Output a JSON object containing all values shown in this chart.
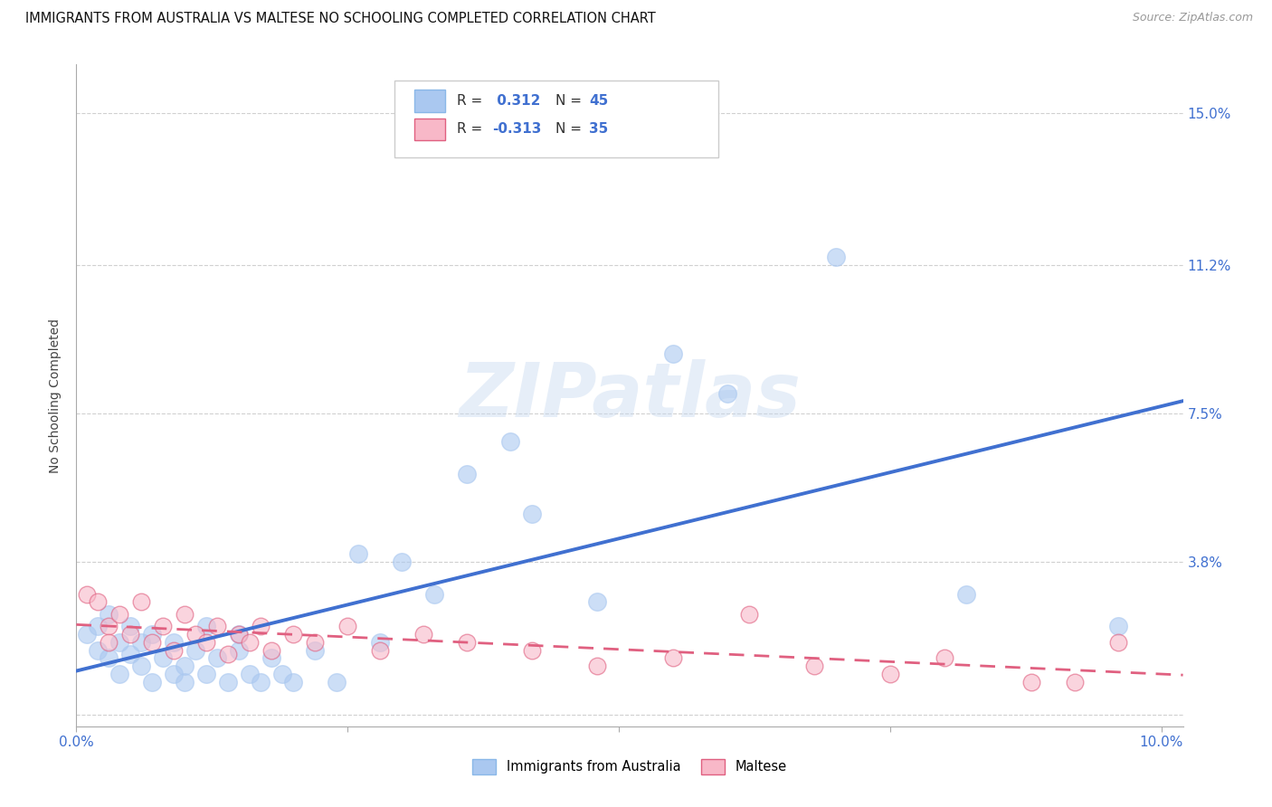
{
  "title": "IMMIGRANTS FROM AUSTRALIA VS MALTESE NO SCHOOLING COMPLETED CORRELATION CHART",
  "source": "Source: ZipAtlas.com",
  "ylabel": "No Schooling Completed",
  "xlim": [
    0.0,
    0.102
  ],
  "ylim": [
    -0.003,
    0.162
  ],
  "ytick_vals": [
    0.0,
    0.038,
    0.075,
    0.112,
    0.15
  ],
  "ytick_labels": [
    "",
    "3.8%",
    "7.5%",
    "11.2%",
    "15.0%"
  ],
  "xtick_vals": [
    0.0,
    0.025,
    0.05,
    0.075,
    0.1
  ],
  "xtick_labels": [
    "0.0%",
    "",
    "",
    "",
    "10.0%"
  ],
  "grid_color": "#d0d0d0",
  "background_color": "#ffffff",
  "blue_color": "#aac8f0",
  "blue_line_color": "#4070d0",
  "pink_color": "#f8b8c8",
  "pink_line_color": "#e06080",
  "legend_label1": "Immigrants from Australia",
  "legend_label2": "Maltese",
  "watermark_text": "ZIPatlas",
  "blue_x": [
    0.001,
    0.002,
    0.002,
    0.003,
    0.003,
    0.004,
    0.004,
    0.005,
    0.005,
    0.006,
    0.006,
    0.007,
    0.007,
    0.008,
    0.009,
    0.009,
    0.01,
    0.01,
    0.011,
    0.012,
    0.012,
    0.013,
    0.014,
    0.015,
    0.015,
    0.016,
    0.017,
    0.018,
    0.019,
    0.02,
    0.022,
    0.024,
    0.026,
    0.028,
    0.03,
    0.033,
    0.036,
    0.04,
    0.042,
    0.048,
    0.055,
    0.06,
    0.07,
    0.082,
    0.096
  ],
  "blue_y": [
    0.02,
    0.016,
    0.022,
    0.014,
    0.025,
    0.018,
    0.01,
    0.015,
    0.022,
    0.012,
    0.018,
    0.008,
    0.02,
    0.014,
    0.01,
    0.018,
    0.008,
    0.012,
    0.016,
    0.01,
    0.022,
    0.014,
    0.008,
    0.016,
    0.02,
    0.01,
    0.008,
    0.014,
    0.01,
    0.008,
    0.016,
    0.008,
    0.04,
    0.018,
    0.038,
    0.03,
    0.06,
    0.068,
    0.05,
    0.028,
    0.09,
    0.08,
    0.114,
    0.03,
    0.022
  ],
  "pink_x": [
    0.001,
    0.002,
    0.003,
    0.003,
    0.004,
    0.005,
    0.006,
    0.007,
    0.008,
    0.009,
    0.01,
    0.011,
    0.012,
    0.013,
    0.014,
    0.015,
    0.016,
    0.017,
    0.018,
    0.02,
    0.022,
    0.025,
    0.028,
    0.032,
    0.036,
    0.042,
    0.048,
    0.055,
    0.062,
    0.068,
    0.075,
    0.08,
    0.088,
    0.092,
    0.096
  ],
  "pink_y": [
    0.03,
    0.028,
    0.022,
    0.018,
    0.025,
    0.02,
    0.028,
    0.018,
    0.022,
    0.016,
    0.025,
    0.02,
    0.018,
    0.022,
    0.015,
    0.02,
    0.018,
    0.022,
    0.016,
    0.02,
    0.018,
    0.022,
    0.016,
    0.02,
    0.018,
    0.016,
    0.012,
    0.014,
    0.025,
    0.012,
    0.01,
    0.014,
    0.008,
    0.008,
    0.018
  ],
  "blue_dot_size": 200,
  "pink_dot_size": 180,
  "title_fontsize": 10.5,
  "tick_fontsize": 11,
  "ylabel_fontsize": 10
}
